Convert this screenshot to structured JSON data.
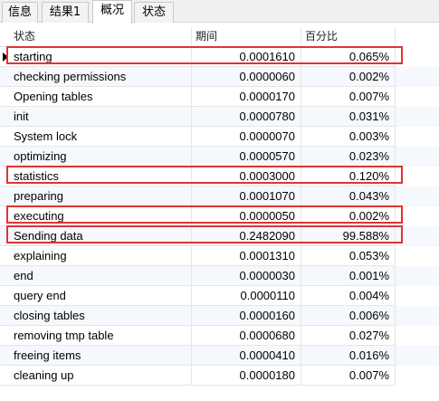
{
  "tabs": [
    {
      "label": "信息",
      "active": false
    },
    {
      "label": "结果1",
      "active": false
    },
    {
      "label": "概况",
      "active": true
    },
    {
      "label": "状态",
      "active": false
    }
  ],
  "columns": {
    "state": "状态",
    "duration": "期间",
    "percent": "百分比"
  },
  "rows": [
    {
      "state": "starting",
      "duration": "0.0001610",
      "percent": "0.065%",
      "highlighted": true,
      "current": true
    },
    {
      "state": "checking permissions",
      "duration": "0.0000060",
      "percent": "0.002%",
      "highlighted": false
    },
    {
      "state": "Opening tables",
      "duration": "0.0000170",
      "percent": "0.007%",
      "highlighted": false
    },
    {
      "state": "init",
      "duration": "0.0000780",
      "percent": "0.031%",
      "highlighted": false
    },
    {
      "state": "System lock",
      "duration": "0.0000070",
      "percent": "0.003%",
      "highlighted": false
    },
    {
      "state": "optimizing",
      "duration": "0.0000570",
      "percent": "0.023%",
      "highlighted": false
    },
    {
      "state": "statistics",
      "duration": "0.0003000",
      "percent": "0.120%",
      "highlighted": true
    },
    {
      "state": "preparing",
      "duration": "0.0001070",
      "percent": "0.043%",
      "highlighted": false
    },
    {
      "state": "executing",
      "duration": "0.0000050",
      "percent": "0.002%",
      "highlighted": true
    },
    {
      "state": "Sending data",
      "duration": "0.2482090",
      "percent": "99.588%",
      "highlighted": true
    },
    {
      "state": "explaining",
      "duration": "0.0001310",
      "percent": "0.053%",
      "highlighted": false
    },
    {
      "state": "end",
      "duration": "0.0000030",
      "percent": "0.001%",
      "highlighted": false
    },
    {
      "state": "query end",
      "duration": "0.0000110",
      "percent": "0.004%",
      "highlighted": false
    },
    {
      "state": "closing tables",
      "duration": "0.0000160",
      "percent": "0.006%",
      "highlighted": false
    },
    {
      "state": "removing tmp table",
      "duration": "0.0000680",
      "percent": "0.027%",
      "highlighted": false
    },
    {
      "state": "freeing items",
      "duration": "0.0000410",
      "percent": "0.016%",
      "highlighted": false
    },
    {
      "state": "cleaning up",
      "duration": "0.0000180",
      "percent": "0.007%",
      "highlighted": false
    }
  ],
  "colors": {
    "highlight": "#e03434",
    "alt_row": "#f5f8fc"
  }
}
